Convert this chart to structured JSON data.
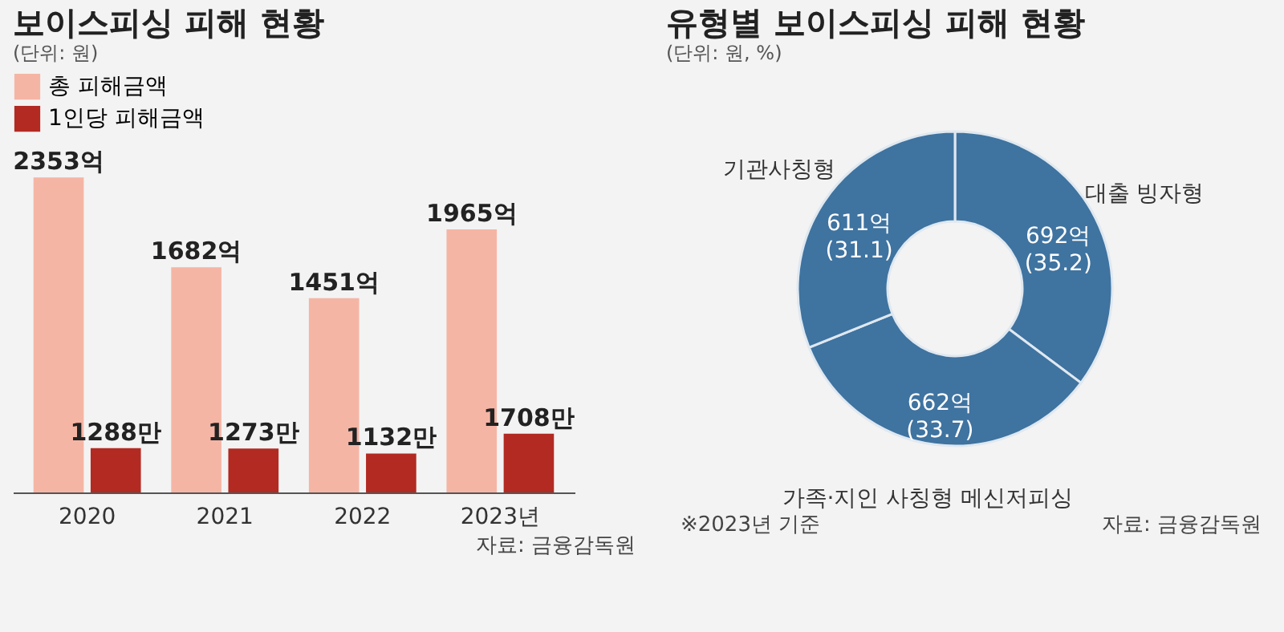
{
  "chart_data": [
    {
      "type": "bar",
      "title": "보이스피싱 피해 현황",
      "subtitle": "(단위: 원)",
      "categories": [
        "2020",
        "2021",
        "2022",
        "2023년"
      ],
      "series": [
        {
          "name": "총 피해금액",
          "color": "#f5b5a5",
          "values": [
            2353,
            1682,
            1451,
            1965
          ],
          "value_labels": [
            "2353억",
            "1682억",
            "1451억",
            "1965억"
          ]
        },
        {
          "name": "1인당 피해금액",
          "color": "#b22a22",
          "axis": "y2",
          "values": [
            1288,
            1273,
            1132,
            1708
          ],
          "value_labels": [
            "1288만",
            "1273만",
            "1132만",
            "1708만"
          ]
        }
      ],
      "legend": "top",
      "annotations": [
        "자료: 금융감독원"
      ]
    },
    {
      "type": "donut",
      "title": "유형별 보이스피싱 피해 현황",
      "subtitle": "(단위: 원, %)",
      "categories": [
        "대출 빙자형",
        "가족·지인 사칭형 메신저피싱",
        "기관사칭형"
      ],
      "values": [
        692,
        662,
        611
      ],
      "colors": [
        "#3f73a0",
        "#3f73a0",
        "#3f73a0"
      ],
      "value_labels": [
        "692억\n(35.2)",
        "662억\n(33.7)",
        "611억\n(31.1)"
      ],
      "annotations": [
        "※2023년 기준",
        "자료: 금융감독원"
      ]
    }
  ]
}
